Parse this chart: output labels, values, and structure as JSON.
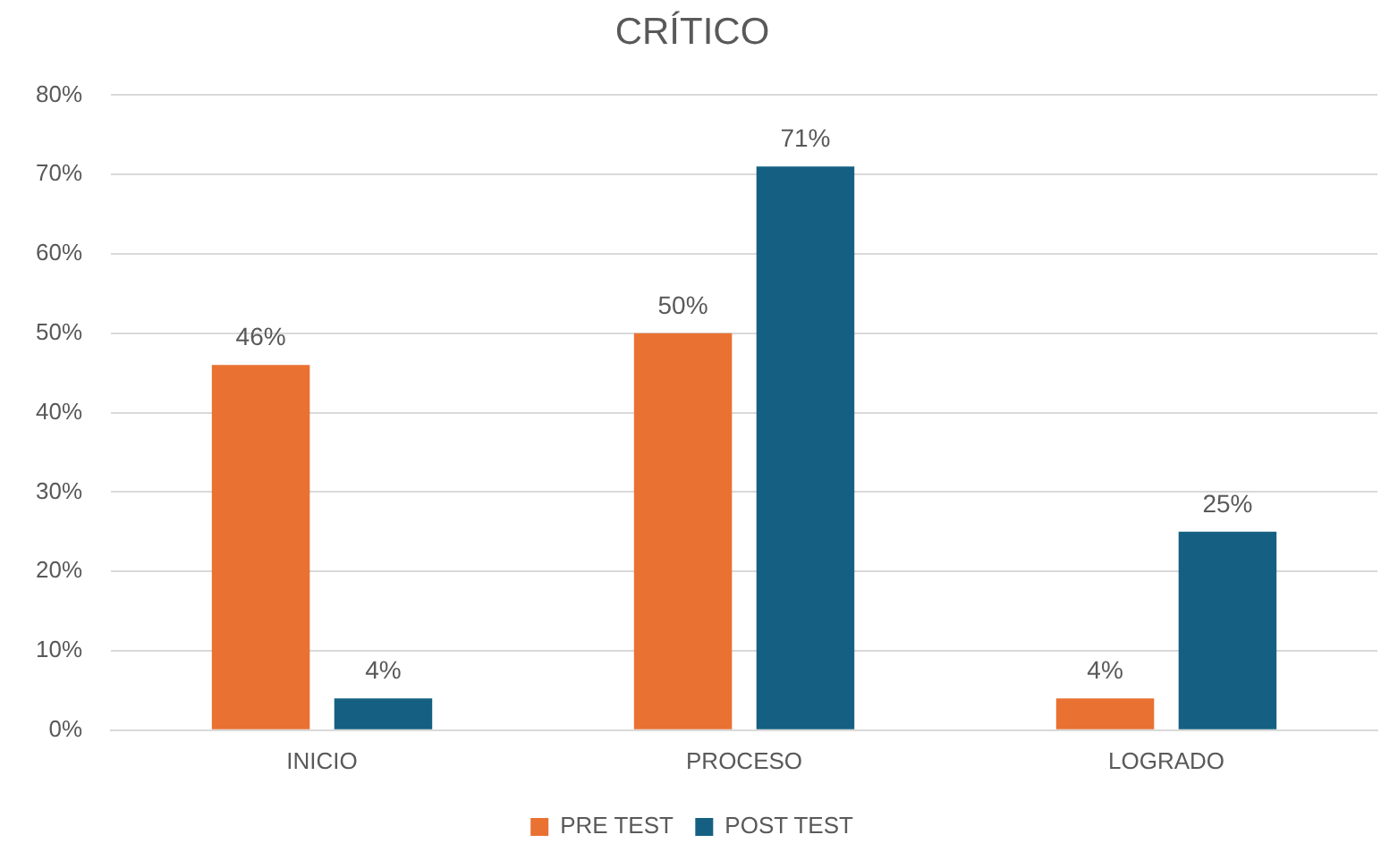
{
  "chart_data": {
    "type": "bar",
    "title": "CRÍTICO",
    "categories": [
      "INICIO",
      "PROCESO",
      "LOGRADO"
    ],
    "series": [
      {
        "name": "PRE TEST",
        "color": "#e97132",
        "values": [
          46,
          50,
          4
        ],
        "value_labels": [
          "46%",
          "50%",
          "4%"
        ]
      },
      {
        "name": "POST TEST",
        "color": "#156082",
        "values": [
          4,
          71,
          25
        ],
        "value_labels": [
          "4%",
          "71%",
          "25%"
        ]
      }
    ],
    "ylim": [
      0,
      80
    ],
    "yticks": [
      {
        "value": 0,
        "label": "0%"
      },
      {
        "value": 10,
        "label": "10%"
      },
      {
        "value": 20,
        "label": "20%"
      },
      {
        "value": 30,
        "label": "30%"
      },
      {
        "value": 40,
        "label": "40%"
      },
      {
        "value": 50,
        "label": "50%"
      },
      {
        "value": 60,
        "label": "60%"
      },
      {
        "value": 70,
        "label": "70%"
      },
      {
        "value": 80,
        "label": "80%"
      }
    ],
    "grid": "y",
    "legend": "bottom"
  }
}
